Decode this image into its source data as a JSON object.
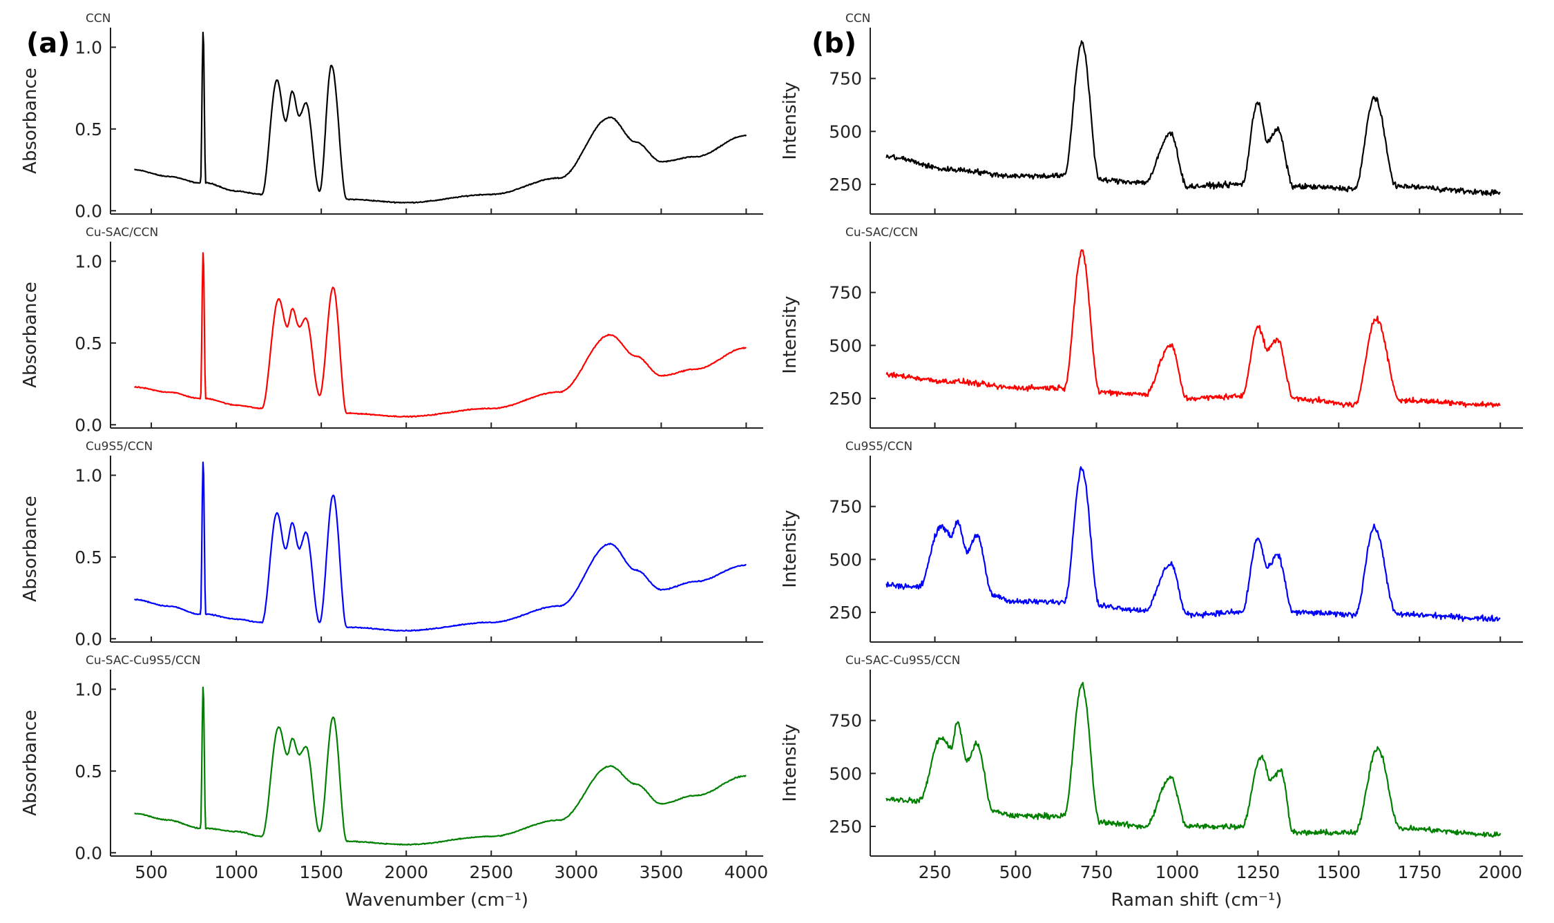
{
  "panels": [
    {
      "letter": "(a)",
      "xlabel": "Wavenumber (cm⁻¹)",
      "ylabel": "Absorbance",
      "xticks": [
        "500",
        "1000",
        "1500",
        "2000",
        "2500",
        "3000",
        "3500",
        "4000"
      ],
      "yticks": [
        "0.0",
        "0.5",
        "1.0"
      ]
    },
    {
      "letter": "(b)",
      "xlabel": "Raman shift (cm⁻¹)",
      "ylabel": "Intensity",
      "xticks": [
        "250",
        "500",
        "750",
        "1000",
        "1250",
        "1500",
        "1750",
        "2000"
      ],
      "yticks": [
        "250",
        "500",
        "750"
      ]
    }
  ],
  "chart_data": [
    {
      "type": "line",
      "panel": "(a)",
      "title": "",
      "xlabel": "Wavenumber (cm⁻¹)",
      "ylabel": "Absorbance",
      "xlim": [
        260,
        4100
      ],
      "ylim": [
        -0.02,
        1.12
      ],
      "xticks": [
        500,
        1000,
        1500,
        2000,
        2500,
        3000,
        3500,
        4000
      ],
      "yticks": [
        0.0,
        0.5,
        1.0
      ],
      "grid": false,
      "series": [
        {
          "name": "CCN",
          "color": "#000000",
          "points": [
            [
              400,
              0.25
            ],
            [
              600,
              0.21
            ],
            [
              790,
              0.17
            ],
            [
              805,
              1.1
            ],
            [
              820,
              0.17
            ],
            [
              1000,
              0.12
            ],
            [
              1150,
              0.1
            ],
            [
              1240,
              0.8
            ],
            [
              1290,
              0.55
            ],
            [
              1330,
              0.73
            ],
            [
              1370,
              0.58
            ],
            [
              1410,
              0.66
            ],
            [
              1490,
              0.12
            ],
            [
              1560,
              0.89
            ],
            [
              1650,
              0.07
            ],
            [
              2000,
              0.05
            ],
            [
              2500,
              0.1
            ],
            [
              2900,
              0.2
            ],
            [
              3200,
              0.57
            ],
            [
              3350,
              0.42
            ],
            [
              3500,
              0.3
            ],
            [
              3700,
              0.33
            ],
            [
              4000,
              0.46
            ]
          ]
        },
        {
          "name": "Cu-SAC/CCN",
          "color": "#ff0000",
          "points": [
            [
              400,
              0.23
            ],
            [
              600,
              0.2
            ],
            [
              790,
              0.16
            ],
            [
              805,
              1.06
            ],
            [
              820,
              0.16
            ],
            [
              1000,
              0.12
            ],
            [
              1150,
              0.1
            ],
            [
              1250,
              0.77
            ],
            [
              1300,
              0.6
            ],
            [
              1330,
              0.71
            ],
            [
              1370,
              0.6
            ],
            [
              1410,
              0.65
            ],
            [
              1490,
              0.18
            ],
            [
              1570,
              0.84
            ],
            [
              1650,
              0.07
            ],
            [
              2000,
              0.05
            ],
            [
              2500,
              0.1
            ],
            [
              2900,
              0.2
            ],
            [
              3200,
              0.55
            ],
            [
              3350,
              0.42
            ],
            [
              3500,
              0.3
            ],
            [
              3700,
              0.34
            ],
            [
              4000,
              0.47
            ]
          ]
        },
        {
          "name": "Cu9S5/CCN",
          "color": "#0000ff",
          "points": [
            [
              400,
              0.24
            ],
            [
              600,
              0.2
            ],
            [
              790,
              0.15
            ],
            [
              805,
              1.09
            ],
            [
              820,
              0.15
            ],
            [
              1000,
              0.12
            ],
            [
              1150,
              0.1
            ],
            [
              1240,
              0.77
            ],
            [
              1290,
              0.55
            ],
            [
              1330,
              0.71
            ],
            [
              1370,
              0.55
            ],
            [
              1410,
              0.65
            ],
            [
              1490,
              0.1
            ],
            [
              1570,
              0.88
            ],
            [
              1650,
              0.07
            ],
            [
              2000,
              0.05
            ],
            [
              2500,
              0.1
            ],
            [
              2900,
              0.2
            ],
            [
              3200,
              0.58
            ],
            [
              3350,
              0.42
            ],
            [
              3500,
              0.3
            ],
            [
              3700,
              0.35
            ],
            [
              4000,
              0.45
            ]
          ]
        },
        {
          "name": "Cu-SAC-Cu9S5/CCN",
          "color": "#008000",
          "points": [
            [
              400,
              0.24
            ],
            [
              600,
              0.2
            ],
            [
              790,
              0.15
            ],
            [
              805,
              1.02
            ],
            [
              820,
              0.15
            ],
            [
              1000,
              0.13
            ],
            [
              1150,
              0.1
            ],
            [
              1250,
              0.77
            ],
            [
              1300,
              0.6
            ],
            [
              1330,
              0.7
            ],
            [
              1370,
              0.6
            ],
            [
              1410,
              0.65
            ],
            [
              1490,
              0.13
            ],
            [
              1570,
              0.83
            ],
            [
              1650,
              0.07
            ],
            [
              2000,
              0.05
            ],
            [
              2500,
              0.1
            ],
            [
              2900,
              0.2
            ],
            [
              3200,
              0.53
            ],
            [
              3350,
              0.42
            ],
            [
              3500,
              0.3
            ],
            [
              3700,
              0.35
            ],
            [
              4000,
              0.47
            ]
          ]
        }
      ]
    },
    {
      "type": "line",
      "panel": "(b)",
      "title": "",
      "xlabel": "Raman shift (cm⁻¹)",
      "ylabel": "Intensity",
      "xlim": [
        50,
        2070
      ],
      "ylim": [
        110,
        990
      ],
      "xticks": [
        250,
        500,
        750,
        1000,
        1250,
        1500,
        1750,
        2000
      ],
      "yticks": [
        250,
        500,
        750
      ],
      "grid": false,
      "series": [
        {
          "name": "CCN",
          "color": "#000000",
          "points": [
            [
              100,
              380
            ],
            [
              300,
              320
            ],
            [
              500,
              290
            ],
            [
              650,
              290
            ],
            [
              705,
              920
            ],
            [
              760,
              270
            ],
            [
              900,
              260
            ],
            [
              980,
              490
            ],
            [
              1030,
              240
            ],
            [
              1200,
              250
            ],
            [
              1250,
              640
            ],
            [
              1280,
              450
            ],
            [
              1310,
              510
            ],
            [
              1360,
              240
            ],
            [
              1550,
              230
            ],
            [
              1610,
              660
            ],
            [
              1680,
              240
            ],
            [
              2000,
              210
            ]
          ]
        },
        {
          "name": "Cu-SAC/CCN",
          "color": "#ff0000",
          "points": [
            [
              100,
              360
            ],
            [
              300,
              330
            ],
            [
              500,
              300
            ],
            [
              650,
              300
            ],
            [
              705,
              940
            ],
            [
              760,
              280
            ],
            [
              900,
              270
            ],
            [
              980,
              500
            ],
            [
              1030,
              250
            ],
            [
              1200,
              260
            ],
            [
              1250,
              590
            ],
            [
              1280,
              480
            ],
            [
              1310,
              530
            ],
            [
              1360,
              250
            ],
            [
              1550,
              220
            ],
            [
              1615,
              630
            ],
            [
              1690,
              240
            ],
            [
              2000,
              220
            ]
          ]
        },
        {
          "name": "Cu9S5/CCN",
          "color": "#0000ff",
          "points": [
            [
              100,
              380
            ],
            [
              200,
              370
            ],
            [
              270,
              660
            ],
            [
              300,
              610
            ],
            [
              320,
              680
            ],
            [
              350,
              540
            ],
            [
              380,
              610
            ],
            [
              430,
              330
            ],
            [
              500,
              300
            ],
            [
              650,
              300
            ],
            [
              705,
              930
            ],
            [
              760,
              280
            ],
            [
              900,
              260
            ],
            [
              980,
              480
            ],
            [
              1030,
              240
            ],
            [
              1200,
              250
            ],
            [
              1250,
              600
            ],
            [
              1280,
              460
            ],
            [
              1310,
              520
            ],
            [
              1360,
              250
            ],
            [
              1550,
              240
            ],
            [
              1610,
              650
            ],
            [
              1680,
              240
            ],
            [
              2000,
              220
            ]
          ]
        },
        {
          "name": "Cu-SAC-Cu9S5/CCN",
          "color": "#008000",
          "points": [
            [
              100,
              380
            ],
            [
              200,
              370
            ],
            [
              270,
              670
            ],
            [
              300,
              620
            ],
            [
              320,
              740
            ],
            [
              350,
              560
            ],
            [
              380,
              640
            ],
            [
              430,
              320
            ],
            [
              500,
              300
            ],
            [
              650,
              300
            ],
            [
              705,
              920
            ],
            [
              760,
              270
            ],
            [
              900,
              250
            ],
            [
              980,
              480
            ],
            [
              1030,
              250
            ],
            [
              1200,
              250
            ],
            [
              1260,
              580
            ],
            [
              1290,
              470
            ],
            [
              1320,
              520
            ],
            [
              1360,
              220
            ],
            [
              1550,
              220
            ],
            [
              1620,
              620
            ],
            [
              1690,
              240
            ],
            [
              2000,
              210
            ]
          ]
        }
      ]
    }
  ]
}
